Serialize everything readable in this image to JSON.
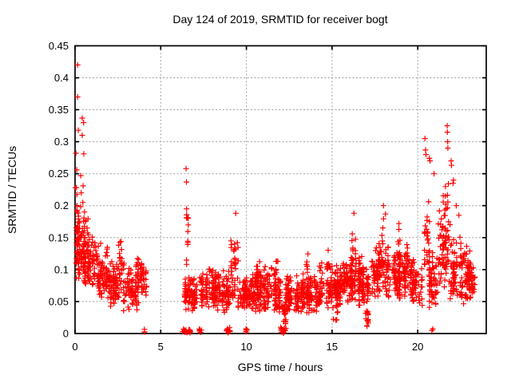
{
  "chart_data": {
    "type": "scatter",
    "title": "Day 124 of 2019, SRMTID for receiver bogt",
    "xlabel": "GPS time / hours",
    "ylabel": "SRMTID / TECUs",
    "xlim": [
      0,
      24
    ],
    "ylim": [
      0,
      0.45
    ],
    "grid": true,
    "legend": "none",
    "xticks": {
      "values": [
        0,
        5,
        10,
        15,
        20
      ],
      "labels": [
        "0",
        "5",
        "10",
        "15",
        "20"
      ]
    },
    "yticks": {
      "values": [
        0,
        0.05,
        0.1,
        0.15,
        0.2,
        0.25,
        0.3,
        0.35,
        0.4,
        0.45
      ],
      "labels": [
        "0",
        "0.05",
        "0.1",
        "0.15",
        "0.2",
        "0.25",
        "0.3",
        "0.35",
        "0.4",
        "0.45"
      ]
    },
    "marker": {
      "shape": "plus",
      "color": "#ff0000",
      "size": 7
    },
    "grid_color": "#9e9e9e",
    "axis_color": "#000000",
    "series_name": "SRMTID",
    "approx_point_count": 2350,
    "cluster_segments": [
      [
        0.03,
        0.35,
        42,
        0.09,
        0.13,
        0.23
      ],
      [
        0.05,
        0.65,
        60,
        0.08,
        0.115,
        0.21
      ],
      [
        0.5,
        1.25,
        95,
        0.07,
        0.105,
        0.18
      ],
      [
        1.25,
        2.05,
        90,
        0.05,
        0.085,
        0.145
      ],
      [
        2.0,
        2.6,
        65,
        0.04,
        0.065,
        0.115
      ],
      [
        2.55,
        2.9,
        24,
        0.055,
        0.09,
        0.155
      ],
      [
        2.85,
        3.6,
        65,
        0.03,
        0.06,
        0.105
      ],
      [
        3.55,
        4.15,
        58,
        0.045,
        0.08,
        0.128
      ],
      [
        4.05,
        4.15,
        3,
        0,
        0.003,
        0.01
      ],
      [
        6.3,
        6.52,
        10,
        0,
        0.003,
        0.009
      ],
      [
        6.44,
        6.6,
        12,
        0.095,
        0.13,
        0.205
      ],
      [
        6.58,
        6.78,
        8,
        0,
        0.003,
        0.009
      ],
      [
        6.4,
        7.6,
        110,
        0.035,
        0.06,
        0.098
      ],
      [
        7.25,
        7.42,
        5,
        0,
        0.003,
        0.009
      ],
      [
        7.6,
        8.65,
        110,
        0.035,
        0.065,
        0.105
      ],
      [
        8.82,
        9.06,
        9,
        0,
        0.004,
        0.012
      ],
      [
        8.6,
        9.35,
        65,
        0.03,
        0.06,
        0.1
      ],
      [
        9.0,
        9.14,
        8,
        0.06,
        0.1,
        0.148
      ],
      [
        9.3,
        9.55,
        16,
        0.075,
        0.11,
        0.172
      ],
      [
        9.5,
        10.05,
        55,
        0.03,
        0.055,
        0.09
      ],
      [
        9.95,
        10.08,
        6,
        0,
        0.003,
        0.009
      ],
      [
        10.0,
        11.0,
        110,
        0.03,
        0.06,
        0.108
      ],
      [
        11.0,
        12.0,
        110,
        0.03,
        0.06,
        0.112
      ],
      [
        10.62,
        10.8,
        6,
        0.08,
        0.1,
        0.132
      ],
      [
        11.72,
        11.9,
        6,
        0.08,
        0.1,
        0.13
      ],
      [
        12.0,
        12.38,
        24,
        0.005,
        0.03,
        0.062
      ],
      [
        12.02,
        12.3,
        11,
        0,
        0.004,
        0.012
      ],
      [
        12.3,
        13.3,
        105,
        0.028,
        0.055,
        0.092
      ],
      [
        13.3,
        14.2,
        105,
        0.03,
        0.06,
        0.1
      ],
      [
        13.42,
        13.6,
        7,
        0.085,
        0.11,
        0.142
      ],
      [
        14.2,
        15.5,
        145,
        0.04,
        0.068,
        0.112
      ],
      [
        14.9,
        15.35,
        12,
        0.01,
        0.03,
        0.06
      ],
      [
        14.72,
        14.9,
        6,
        0.09,
        0.11,
        0.152
      ],
      [
        15.5,
        16.42,
        110,
        0.045,
        0.078,
        0.125
      ],
      [
        16.18,
        16.4,
        10,
        0.1,
        0.128,
        0.185
      ],
      [
        16.4,
        17.25,
        88,
        0.04,
        0.075,
        0.122
      ],
      [
        16.86,
        17.12,
        14,
        0.004,
        0.02,
        0.052
      ],
      [
        17.25,
        18.3,
        110,
        0.05,
        0.088,
        0.152
      ],
      [
        17.9,
        18.14,
        10,
        0.1,
        0.14,
        0.2
      ],
      [
        18.3,
        19.6,
        128,
        0.05,
        0.085,
        0.142
      ],
      [
        18.78,
        19.0,
        8,
        0.1,
        0.13,
        0.172
      ],
      [
        19.28,
        19.5,
        7,
        0.09,
        0.118,
        0.152
      ],
      [
        19.6,
        20.28,
        66,
        0.04,
        0.07,
        0.122
      ],
      [
        20.3,
        20.68,
        26,
        0.08,
        0.13,
        0.235
      ],
      [
        20.6,
        21.2,
        56,
        0.04,
        0.08,
        0.132
      ],
      [
        20.82,
        20.92,
        2,
        0,
        0.004,
        0.01
      ],
      [
        21.2,
        21.92,
        80,
        0.06,
        0.11,
        0.24
      ],
      [
        21.9,
        23.02,
        118,
        0.04,
        0.085,
        0.152
      ],
      [
        23.0,
        23.45,
        40,
        0.045,
        0.075,
        0.122
      ]
    ],
    "outlier_points": [
      [
        0.15,
        0.42
      ],
      [
        0.15,
        0.37
      ],
      [
        0.42,
        0.337
      ],
      [
        0.5,
        0.33
      ],
      [
        0.19,
        0.318
      ],
      [
        0.42,
        0.31
      ],
      [
        0.05,
        0.282
      ],
      [
        0.51,
        0.281
      ],
      [
        0.1,
        0.256
      ],
      [
        0.33,
        0.247
      ],
      [
        0.02,
        0.228
      ],
      [
        0.47,
        0.231
      ],
      [
        0.36,
        0.22
      ],
      [
        0.45,
        0.205
      ],
      [
        0.55,
        0.19
      ],
      [
        6.48,
        0.258
      ],
      [
        6.5,
        0.237
      ],
      [
        6.51,
        0.195
      ],
      [
        9.38,
        0.188
      ],
      [
        16.28,
        0.188
      ],
      [
        18.0,
        0.2
      ],
      [
        18.9,
        0.172
      ],
      [
        20.42,
        0.305
      ],
      [
        20.46,
        0.287
      ],
      [
        20.48,
        0.28
      ],
      [
        20.68,
        0.274
      ],
      [
        20.72,
        0.27
      ],
      [
        20.95,
        0.25
      ],
      [
        21.72,
        0.325
      ],
      [
        21.73,
        0.315
      ],
      [
        21.75,
        0.3
      ],
      [
        21.76,
        0.29
      ],
      [
        21.62,
        0.23
      ],
      [
        21.95,
        0.27
      ],
      [
        21.97,
        0.263
      ],
      [
        22.09,
        0.24
      ],
      [
        22.06,
        0.235
      ],
      [
        22.25,
        0.2
      ],
      [
        22.4,
        0.185
      ]
    ]
  }
}
